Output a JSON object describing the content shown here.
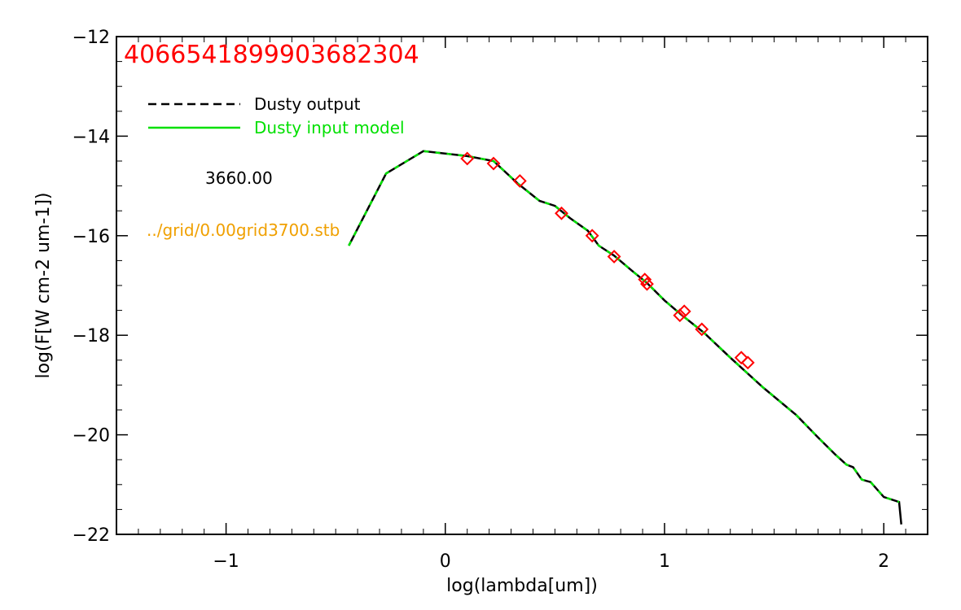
{
  "chart_data": {
    "type": "line",
    "title": "4066541899903682304",
    "xlabel": "log(lambda[um])",
    "ylabel": "log(F[W cm-2 um-1])",
    "xlim": [
      -1.5,
      2.2
    ],
    "ylim": [
      -22,
      -12
    ],
    "x_ticks": [
      -1,
      0,
      1,
      2
    ],
    "x_tick_labels": [
      "−1",
      "0",
      "1",
      "2"
    ],
    "y_ticks": [
      -22,
      -20,
      -18,
      -16,
      -14,
      -12
    ],
    "y_tick_labels": [
      "−22",
      "−20",
      "−18",
      "−16",
      "−14",
      "−12"
    ],
    "legend_placement": "top-left",
    "annotations": {
      "temperature": "3660.00",
      "model_file": "../grid/0.00grid3700.stb"
    },
    "colors": {
      "output": "#000000",
      "input": "#00e000",
      "points": "#ff0000",
      "title": "#ff0000",
      "model_file": "#f0a000"
    },
    "series": [
      {
        "name": "Dusty output",
        "style": "dashed",
        "x": [
          -0.44,
          -0.27,
          -0.1,
          0.1,
          0.22,
          0.33,
          0.43,
          0.5,
          0.57,
          0.65,
          0.7,
          0.77,
          0.85,
          0.92,
          1.0,
          1.08,
          1.18,
          1.3,
          1.45,
          1.6,
          1.7,
          1.78,
          1.83,
          1.86,
          1.9,
          1.94,
          2.0,
          2.07,
          2.08
        ],
        "y": [
          -16.2,
          -14.75,
          -14.3,
          -14.4,
          -14.5,
          -14.95,
          -15.3,
          -15.4,
          -15.65,
          -15.9,
          -16.2,
          -16.4,
          -16.7,
          -16.95,
          -17.3,
          -17.6,
          -17.95,
          -18.45,
          -19.05,
          -19.6,
          -20.05,
          -20.4,
          -20.6,
          -20.65,
          -20.9,
          -20.95,
          -21.25,
          -21.35,
          -21.8
        ]
      },
      {
        "name": "Dusty input model",
        "style": "solid",
        "x": [
          -0.44,
          -0.27,
          -0.1,
          0.1,
          0.22,
          0.33,
          0.43,
          0.5,
          0.57,
          0.65,
          0.7,
          0.77,
          0.85,
          0.92,
          1.0,
          1.08,
          1.18,
          1.3,
          1.45,
          1.6,
          1.7,
          1.78,
          1.83,
          1.86,
          1.9,
          1.94,
          2.0,
          2.07
        ],
        "y": [
          -16.2,
          -14.75,
          -14.3,
          -14.4,
          -14.5,
          -14.95,
          -15.3,
          -15.4,
          -15.65,
          -15.9,
          -16.2,
          -16.4,
          -16.7,
          -16.95,
          -17.3,
          -17.6,
          -17.95,
          -18.45,
          -19.05,
          -19.6,
          -20.05,
          -20.4,
          -20.6,
          -20.65,
          -20.9,
          -20.95,
          -21.25,
          -21.35
        ]
      }
    ],
    "points": {
      "marker": "diamond",
      "x": [
        0.1,
        0.22,
        0.34,
        0.53,
        0.67,
        0.77,
        0.91,
        0.92,
        1.07,
        1.09,
        1.17,
        1.35,
        1.38
      ],
      "y": [
        -14.45,
        -14.55,
        -14.9,
        -15.55,
        -16.0,
        -16.42,
        -16.88,
        -16.97,
        -17.6,
        -17.52,
        -17.88,
        -18.45,
        -18.55
      ]
    }
  }
}
